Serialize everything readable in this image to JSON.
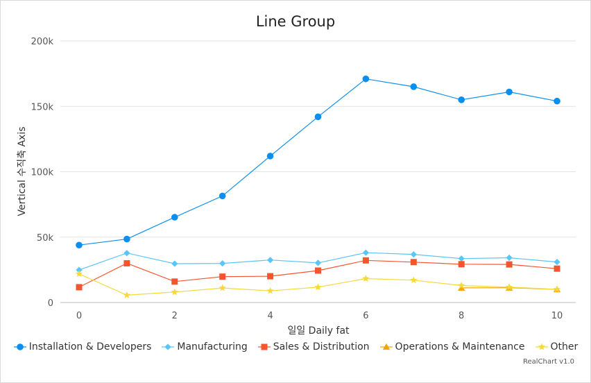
{
  "chart_data": {
    "type": "line",
    "title": "Line Group",
    "xlabel": "일일 Daily fat",
    "ylabel": "Vertical 수직축 Axis",
    "xlim": [
      0,
      10
    ],
    "ylim": [
      0,
      200000
    ],
    "x_ticks": [
      0,
      2,
      4,
      6,
      8,
      10
    ],
    "y_ticks": [
      0,
      50000,
      100000,
      150000,
      200000
    ],
    "y_tick_labels": [
      "0",
      "50k",
      "100k",
      "150k",
      "200k"
    ],
    "grid": "horizontal",
    "legend_position": "bottom",
    "series": [
      {
        "name": "Installation & Developers",
        "color": "#0a8fef",
        "marker": "circle",
        "x": [
          0,
          1,
          2,
          3,
          4,
          5,
          6,
          7,
          8,
          9,
          10
        ],
        "values": [
          43900,
          48500,
          65200,
          81500,
          112000,
          142000,
          171000,
          165000,
          155000,
          161000,
          154000
        ]
      },
      {
        "name": "Manufacturing",
        "color": "#59c6f5",
        "marker": "diamond",
        "x": [
          0,
          1,
          2,
          3,
          4,
          5,
          6,
          7,
          8,
          9,
          10
        ],
        "values": [
          24900,
          37800,
          29700,
          29900,
          32500,
          30300,
          38100,
          36800,
          33600,
          34200,
          31000
        ]
      },
      {
        "name": "Sales & Distribution",
        "color": "#f4552f",
        "marker": "square",
        "x": [
          0,
          1,
          2,
          3,
          4,
          5,
          6,
          7,
          8,
          9,
          10
        ],
        "values": [
          11700,
          30000,
          16000,
          19800,
          20100,
          24400,
          32200,
          30900,
          29300,
          29100,
          25900
        ]
      },
      {
        "name": "Operations & Maintenance",
        "color": "#f3a60b",
        "marker": "triangle",
        "x": [
          8,
          9,
          10
        ],
        "values": [
          11200,
          11300,
          10000
        ]
      },
      {
        "name": "Other",
        "color": "#f6d93b",
        "marker": "star",
        "x": [
          0,
          1,
          2,
          3,
          4,
          5,
          6,
          7,
          8,
          9,
          10
        ],
        "values": [
          21900,
          5600,
          8000,
          11100,
          8900,
          11700,
          18300,
          17100,
          13000,
          11800,
          10100
        ]
      }
    ]
  },
  "credit": "RealChart v1.0"
}
